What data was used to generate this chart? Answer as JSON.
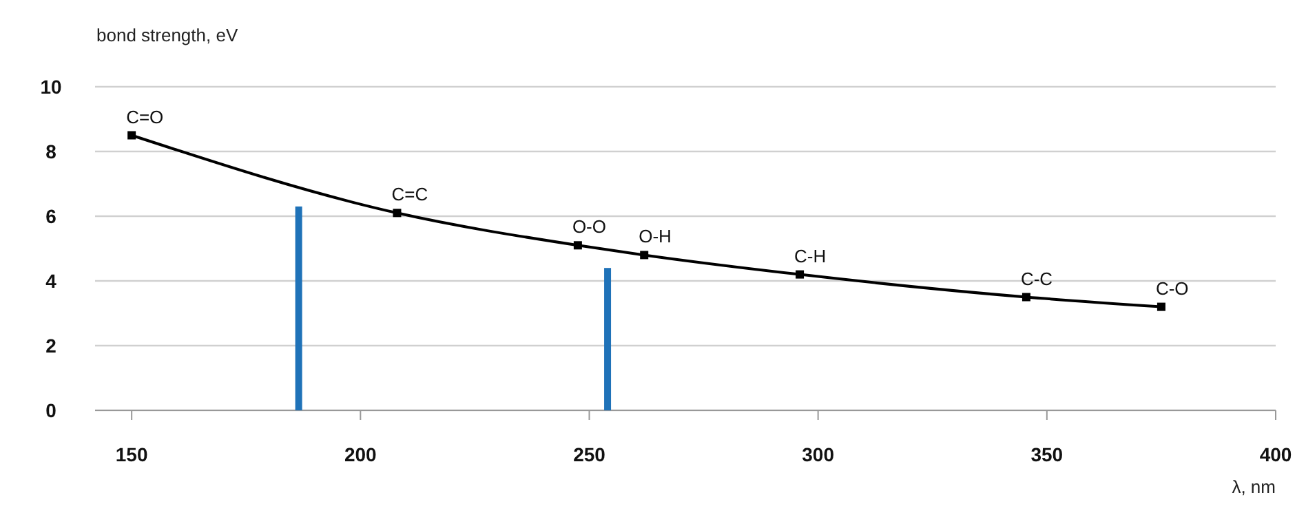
{
  "chart_data": {
    "type": "line",
    "ylabel": "bond strength, eV",
    "xlabel": "λ, nm",
    "xlim": [
      142,
      400
    ],
    "xticks": [
      150,
      200,
      250,
      300,
      350,
      400
    ],
    "ylim": [
      0,
      10
    ],
    "yticks": [
      0,
      2,
      4,
      6,
      8,
      10
    ],
    "grid": "y",
    "marker": "square",
    "line_style": "solid",
    "series": [
      {
        "color": "#000000",
        "x": [
          150,
          208,
          247.5,
          262,
          296,
          345.5,
          375
        ],
        "values": [
          8.5,
          6.1,
          5.1,
          4.8,
          4.2,
          3.5,
          3.2
        ]
      },
      {
        "type": "bar",
        "color": "#1f72b8",
        "x": [
          186.5,
          254
        ],
        "values": [
          6.3,
          4.4
        ]
      }
    ],
    "annotations": [
      {
        "text": "C=O",
        "x": 150,
        "y": 8.5
      },
      {
        "text": "C=C",
        "x": 208,
        "y": 6.1
      },
      {
        "text": "O-O",
        "x": 247.5,
        "y": 5.1
      },
      {
        "text": "O-H",
        "x": 262,
        "y": 4.8
      },
      {
        "text": "C-H",
        "x": 296,
        "y": 4.2
      },
      {
        "text": "C-C",
        "x": 345.5,
        "y": 3.5
      },
      {
        "text": "C-O",
        "x": 375,
        "y": 3.2
      }
    ]
  }
}
